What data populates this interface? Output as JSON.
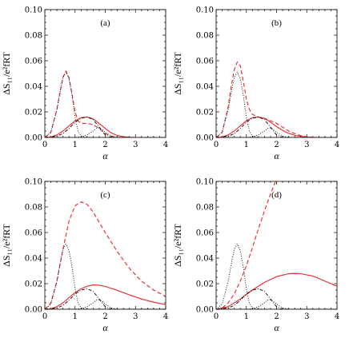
{
  "chart_data": [
    {
      "type": "line",
      "panel_label": "(a)",
      "xlabel": "α",
      "ylabel": "ΔS₁₁/e²fRT",
      "xlim": [
        0,
        4
      ],
      "ylim": [
        0,
        0.1
      ],
      "xticks": [
        "0",
        "1",
        "2",
        "3",
        "4"
      ],
      "yticks": [
        "0.00",
        "0.02",
        "0.04",
        "0.06",
        "0.08",
        "0.10"
      ],
      "series": [
        {
          "style": "red-solid",
          "x": [
            0,
            0.2,
            0.4,
            0.6,
            0.8,
            1.0,
            1.2,
            1.4,
            1.6,
            1.8,
            2.0,
            2.2,
            2.4,
            2.6,
            2.8,
            3.0,
            3.2,
            3.4,
            3.6,
            3.8,
            4.0
          ],
          "y": [
            0,
            0.0003,
            0.002,
            0.005,
            0.009,
            0.013,
            0.0155,
            0.016,
            0.0145,
            0.011,
            0.007,
            0.0035,
            0.0015,
            0.0005,
            0.0001,
            0,
            0,
            0,
            0,
            0,
            0
          ]
        },
        {
          "style": "red-dashed",
          "x": [
            0,
            0.2,
            0.4,
            0.5,
            0.6,
            0.7,
            0.8,
            0.9,
            1.0,
            1.1,
            1.2,
            1.4,
            1.6,
            1.8,
            2.0,
            2.2,
            2.4,
            4.0
          ],
          "y": [
            0,
            0.004,
            0.022,
            0.035,
            0.047,
            0.052,
            0.047,
            0.034,
            0.02,
            0.013,
            0.011,
            0.011,
            0.01,
            0.007,
            0.003,
            0.001,
            0,
            0
          ]
        },
        {
          "style": "black-dotted",
          "x": [
            0,
            0.2,
            0.4,
            0.5,
            0.6,
            0.7,
            0.8,
            0.9,
            1.0,
            1.1,
            1.2,
            1.4,
            4.0
          ],
          "y": [
            0,
            0.004,
            0.022,
            0.035,
            0.047,
            0.051,
            0.046,
            0.033,
            0.016,
            0.005,
            0.001,
            0,
            0
          ]
        },
        {
          "style": "black-dashdot",
          "x": [
            0,
            0.4,
            0.6,
            0.8,
            1.0,
            1.2,
            1.4,
            1.6,
            1.8,
            2.0,
            2.2,
            4.0
          ],
          "y": [
            0,
            0.001,
            0.003,
            0.007,
            0.012,
            0.015,
            0.016,
            0.014,
            0.008,
            0.002,
            0,
            0
          ]
        },
        {
          "style": "black-dotted-2",
          "x": [
            0,
            1.0,
            1.2,
            1.4,
            1.6,
            1.7,
            1.8,
            1.9,
            2.0,
            2.2,
            2.4,
            4.0
          ],
          "y": [
            0,
            0,
            0.0005,
            0.002,
            0.005,
            0.007,
            0.0075,
            0.006,
            0.004,
            0.001,
            0,
            0
          ]
        }
      ]
    },
    {
      "type": "line",
      "panel_label": "(b)",
      "xlabel": "α",
      "ylabel": "ΔS₁₁/e²fRT",
      "xlim": [
        0,
        4
      ],
      "ylim": [
        0,
        0.1
      ],
      "xticks": [
        "0",
        "1",
        "2",
        "3",
        "4"
      ],
      "yticks": [
        "0.00",
        "0.02",
        "0.04",
        "0.06",
        "0.08",
        "0.10"
      ],
      "series": [
        {
          "style": "red-solid",
          "x": [
            0,
            0.2,
            0.4,
            0.6,
            0.8,
            1.0,
            1.2,
            1.4,
            1.6,
            1.8,
            2.0,
            2.2,
            2.4,
            2.6,
            2.8,
            3.0,
            3.2,
            3.4,
            4.0
          ],
          "y": [
            0,
            0.0003,
            0.002,
            0.005,
            0.009,
            0.013,
            0.0155,
            0.016,
            0.0148,
            0.012,
            0.0085,
            0.0055,
            0.0032,
            0.0017,
            0.0008,
            0.0003,
            0.0001,
            0,
            0
          ]
        },
        {
          "style": "red-dashed",
          "x": [
            0,
            0.2,
            0.4,
            0.5,
            0.6,
            0.7,
            0.8,
            0.9,
            1.0,
            1.1,
            1.2,
            1.4,
            1.6,
            1.8,
            2.0,
            2.2,
            2.4,
            2.6,
            2.8,
            3.0,
            3.2,
            4.0
          ],
          "y": [
            0,
            0.004,
            0.024,
            0.04,
            0.053,
            0.059,
            0.056,
            0.044,
            0.03,
            0.022,
            0.018,
            0.016,
            0.015,
            0.013,
            0.011,
            0.008,
            0.005,
            0.003,
            0.0015,
            0.0005,
            0,
            0
          ]
        },
        {
          "style": "black-dotted",
          "x": [
            0,
            0.2,
            0.4,
            0.5,
            0.6,
            0.7,
            0.8,
            0.9,
            1.0,
            1.1,
            1.2,
            1.4,
            4.0
          ],
          "y": [
            0,
            0.004,
            0.022,
            0.035,
            0.047,
            0.051,
            0.046,
            0.033,
            0.016,
            0.005,
            0.001,
            0,
            0
          ]
        },
        {
          "style": "black-dashdot",
          "x": [
            0,
            0.4,
            0.6,
            0.8,
            1.0,
            1.2,
            1.4,
            1.6,
            1.8,
            2.0,
            2.2,
            4.0
          ],
          "y": [
            0,
            0.001,
            0.003,
            0.007,
            0.012,
            0.015,
            0.016,
            0.014,
            0.008,
            0.002,
            0,
            0
          ]
        },
        {
          "style": "black-dotted-2",
          "x": [
            0,
            1.0,
            1.2,
            1.4,
            1.6,
            1.7,
            1.8,
            1.9,
            2.0,
            2.2,
            2.4,
            4.0
          ],
          "y": [
            0,
            0,
            0.0005,
            0.002,
            0.005,
            0.007,
            0.0075,
            0.006,
            0.004,
            0.001,
            0,
            0
          ]
        }
      ]
    },
    {
      "type": "line",
      "panel_label": "(c)",
      "xlabel": "α",
      "ylabel": "ΔS₁₁/e²fRT",
      "xlim": [
        0,
        4
      ],
      "ylim": [
        0,
        0.1
      ],
      "xticks": [
        "0",
        "1",
        "2",
        "3",
        "4"
      ],
      "yticks": [
        "0.00",
        "0.02",
        "0.04",
        "0.06",
        "0.08",
        "0.10"
      ],
      "series": [
        {
          "style": "red-solid",
          "x": [
            0,
            0.2,
            0.4,
            0.6,
            0.8,
            1.0,
            1.2,
            1.4,
            1.6,
            1.8,
            2.0,
            2.4,
            2.8,
            3.2,
            3.6,
            4.0
          ],
          "y": [
            0,
            0.0003,
            0.002,
            0.005,
            0.009,
            0.013,
            0.016,
            0.018,
            0.019,
            0.0188,
            0.0178,
            0.0148,
            0.0112,
            0.008,
            0.0055,
            0.0036
          ]
        },
        {
          "style": "red-dashed",
          "x": [
            0,
            0.2,
            0.4,
            0.6,
            0.8,
            1.0,
            1.2,
            1.4,
            1.6,
            1.8,
            2.0,
            2.4,
            2.8,
            3.2,
            3.6,
            4.0
          ],
          "y": [
            0,
            0.005,
            0.022,
            0.047,
            0.069,
            0.081,
            0.084,
            0.082,
            0.076,
            0.068,
            0.06,
            0.045,
            0.032,
            0.022,
            0.015,
            0.01
          ]
        },
        {
          "style": "black-dotted",
          "x": [
            0,
            0.2,
            0.4,
            0.5,
            0.6,
            0.7,
            0.8,
            0.9,
            1.0,
            1.1,
            1.2,
            1.4,
            4.0
          ],
          "y": [
            0,
            0.004,
            0.022,
            0.035,
            0.047,
            0.051,
            0.046,
            0.033,
            0.016,
            0.005,
            0.001,
            0,
            0
          ]
        },
        {
          "style": "black-dashdot",
          "x": [
            0,
            0.4,
            0.6,
            0.8,
            1.0,
            1.2,
            1.4,
            1.6,
            1.8,
            2.0,
            2.2,
            4.0
          ],
          "y": [
            0,
            0.001,
            0.003,
            0.007,
            0.012,
            0.015,
            0.016,
            0.014,
            0.008,
            0.002,
            0,
            0
          ]
        },
        {
          "style": "black-dotted-2",
          "x": [
            0,
            1.0,
            1.2,
            1.4,
            1.6,
            1.7,
            1.8,
            1.9,
            2.0,
            2.2,
            2.4,
            4.0
          ],
          "y": [
            0,
            0,
            0.0005,
            0.002,
            0.005,
            0.007,
            0.0075,
            0.006,
            0.004,
            0.001,
            0,
            0
          ]
        }
      ]
    },
    {
      "type": "line",
      "panel_label": "(d)",
      "xlabel": "α",
      "ylabel": "ΔS₁₁/e²fRT",
      "xlim": [
        0,
        4
      ],
      "ylim": [
        0,
        0.1
      ],
      "xticks": [
        "0",
        "1",
        "2",
        "3",
        "4"
      ],
      "yticks": [
        "0.00",
        "0.02",
        "0.04",
        "0.06",
        "0.08",
        "0.10"
      ],
      "series": [
        {
          "style": "red-solid",
          "x": [
            0,
            0.4,
            0.8,
            1.2,
            1.6,
            2.0,
            2.4,
            2.6,
            2.8,
            3.2,
            3.6,
            4.0
          ],
          "y": [
            0,
            0.002,
            0.008,
            0.015,
            0.021,
            0.0255,
            0.0278,
            0.028,
            0.0278,
            0.026,
            0.022,
            0.018
          ]
        },
        {
          "style": "red-dashed",
          "x": [
            0,
            0.2,
            0.4,
            0.6,
            0.8,
            1.0,
            1.2,
            1.4,
            1.6,
            1.8,
            2.0,
            2.1
          ],
          "y": [
            0,
            0.001,
            0.005,
            0.012,
            0.022,
            0.034,
            0.048,
            0.063,
            0.077,
            0.09,
            0.102,
            0.108
          ]
        },
        {
          "style": "black-dotted",
          "x": [
            0,
            0.2,
            0.4,
            0.5,
            0.6,
            0.7,
            0.8,
            0.9,
            1.0,
            1.1,
            1.2,
            1.4,
            4.0
          ],
          "y": [
            0,
            0.004,
            0.022,
            0.035,
            0.047,
            0.051,
            0.046,
            0.033,
            0.016,
            0.005,
            0.001,
            0,
            0
          ]
        },
        {
          "style": "black-dashdot",
          "x": [
            0,
            0.4,
            0.6,
            0.8,
            1.0,
            1.2,
            1.4,
            1.6,
            1.8,
            2.0,
            2.2,
            4.0
          ],
          "y": [
            0,
            0.001,
            0.003,
            0.007,
            0.012,
            0.015,
            0.016,
            0.014,
            0.008,
            0.002,
            0,
            0
          ]
        },
        {
          "style": "black-dotted-2",
          "x": [
            0,
            1.0,
            1.2,
            1.4,
            1.6,
            1.7,
            1.8,
            1.9,
            2.0,
            2.2,
            2.4,
            4.0
          ],
          "y": [
            0,
            0,
            0.0005,
            0.002,
            0.005,
            0.007,
            0.0075,
            0.006,
            0.004,
            0.001,
            0,
            0
          ]
        }
      ]
    }
  ],
  "colors": {
    "red": "#e8252a",
    "black": "#000000"
  }
}
